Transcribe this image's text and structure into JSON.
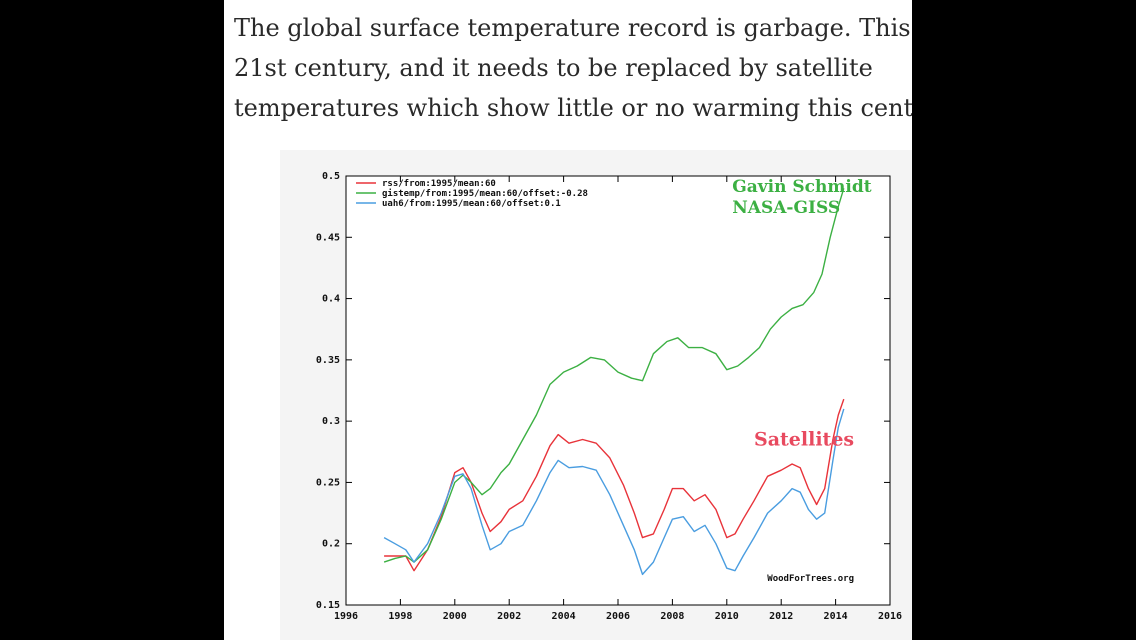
{
  "article": {
    "lines": [
      "The global surface temperature record is garbage. This is t",
      "21st century, and it needs to be replaced by satellite",
      "temperatures which show little or no warming this centur"
    ]
  },
  "chart_data": {
    "type": "line",
    "xlim": [
      1996,
      2016
    ],
    "ylim": [
      0.15,
      0.5
    ],
    "xticks": [
      1996,
      1998,
      2000,
      2002,
      2004,
      2006,
      2008,
      2010,
      2012,
      2014,
      2016
    ],
    "yticks": [
      0.15,
      0.2,
      0.25,
      0.3,
      0.35,
      0.4,
      0.45,
      0.5
    ],
    "ytick_labels": [
      "0.15",
      "0.2",
      "0.25",
      "0.3",
      "0.35",
      "0.4",
      "0.45",
      "0.5"
    ],
    "grid": false,
    "legend_position": "top-left",
    "annotations": [
      {
        "text": "Gavin Schmidt",
        "color": "#3cb043",
        "x": 2010.2,
        "y": 0.487
      },
      {
        "text": "NASA-GISS",
        "color": "#3cb043",
        "x": 2010.2,
        "y": 0.47
      },
      {
        "text": "Satellites",
        "color": "#e84a5f",
        "x": 2011,
        "y": 0.28
      }
    ],
    "credit": "WoodForTrees.org",
    "series": [
      {
        "name": "rss/from:1995/mean:60",
        "color": "#e8333a",
        "x": [
          1997.4,
          1997.8,
          1998.2,
          1998.5,
          1999.0,
          1999.5,
          2000.0,
          2000.3,
          2000.6,
          2001.0,
          2001.3,
          2001.7,
          2002.0,
          2002.5,
          2003.0,
          2003.5,
          2003.8,
          2004.2,
          2004.7,
          2005.2,
          2005.7,
          2006.2,
          2006.6,
          2006.9,
          2007.3,
          2007.7,
          2008.0,
          2008.4,
          2008.8,
          2009.2,
          2009.6,
          2010.0,
          2010.3,
          2010.6,
          2011.0,
          2011.5,
          2012.0,
          2012.4,
          2012.7,
          2013.0,
          2013.3,
          2013.6,
          2013.9,
          2014.1,
          2014.3
        ],
        "y": [
          0.19,
          0.19,
          0.19,
          0.178,
          0.195,
          0.222,
          0.258,
          0.262,
          0.25,
          0.225,
          0.21,
          0.218,
          0.228,
          0.235,
          0.255,
          0.28,
          0.289,
          0.282,
          0.285,
          0.282,
          0.27,
          0.248,
          0.225,
          0.205,
          0.208,
          0.228,
          0.245,
          0.245,
          0.235,
          0.24,
          0.228,
          0.205,
          0.208,
          0.22,
          0.235,
          0.255,
          0.26,
          0.265,
          0.262,
          0.245,
          0.232,
          0.245,
          0.285,
          0.305,
          0.318
        ]
      },
      {
        "name": "gistemp/from:1995/mean:60/offset:-0.28",
        "color": "#3cb043",
        "x": [
          1997.4,
          1997.8,
          1998.2,
          1998.5,
          1999.0,
          1999.5,
          2000.0,
          2000.3,
          2000.6,
          2001.0,
          2001.3,
          2001.7,
          2002.0,
          2002.5,
          2003.0,
          2003.5,
          2004.0,
          2004.5,
          2005.0,
          2005.5,
          2006.0,
          2006.5,
          2006.9,
          2007.3,
          2007.8,
          2008.2,
          2008.6,
          2009.1,
          2009.6,
          2010.0,
          2010.4,
          2010.8,
          2011.2,
          2011.6,
          2012.0,
          2012.4,
          2012.8,
          2013.2,
          2013.5,
          2013.8,
          2014.1,
          2014.3
        ],
        "y": [
          0.185,
          0.188,
          0.19,
          0.185,
          0.195,
          0.22,
          0.25,
          0.256,
          0.25,
          0.24,
          0.245,
          0.258,
          0.265,
          0.285,
          0.305,
          0.33,
          0.34,
          0.345,
          0.352,
          0.35,
          0.34,
          0.335,
          0.333,
          0.355,
          0.365,
          0.368,
          0.36,
          0.36,
          0.355,
          0.342,
          0.345,
          0.352,
          0.36,
          0.375,
          0.385,
          0.392,
          0.395,
          0.405,
          0.42,
          0.45,
          0.475,
          0.49
        ]
      },
      {
        "name": "uah6/from:1995/mean:60/offset:0.1",
        "color": "#4a9de0",
        "x": [
          1997.4,
          1997.8,
          1998.2,
          1998.5,
          1999.0,
          1999.5,
          2000.0,
          2000.3,
          2000.6,
          2001.0,
          2001.3,
          2001.7,
          2002.0,
          2002.5,
          2003.0,
          2003.5,
          2003.8,
          2004.2,
          2004.7,
          2005.2,
          2005.7,
          2006.2,
          2006.6,
          2006.9,
          2007.3,
          2007.7,
          2008.0,
          2008.4,
          2008.8,
          2009.2,
          2009.6,
          2010.0,
          2010.3,
          2010.6,
          2011.0,
          2011.5,
          2012.0,
          2012.4,
          2012.7,
          2013.0,
          2013.3,
          2013.6,
          2013.9,
          2014.1,
          2014.3
        ],
        "y": [
          0.205,
          0.2,
          0.195,
          0.185,
          0.2,
          0.225,
          0.255,
          0.257,
          0.245,
          0.215,
          0.195,
          0.2,
          0.21,
          0.215,
          0.235,
          0.258,
          0.268,
          0.262,
          0.263,
          0.26,
          0.24,
          0.215,
          0.195,
          0.175,
          0.185,
          0.205,
          0.22,
          0.222,
          0.21,
          0.215,
          0.2,
          0.18,
          0.178,
          0.19,
          0.205,
          0.225,
          0.235,
          0.245,
          0.242,
          0.228,
          0.22,
          0.225,
          0.268,
          0.295,
          0.31
        ]
      }
    ]
  }
}
